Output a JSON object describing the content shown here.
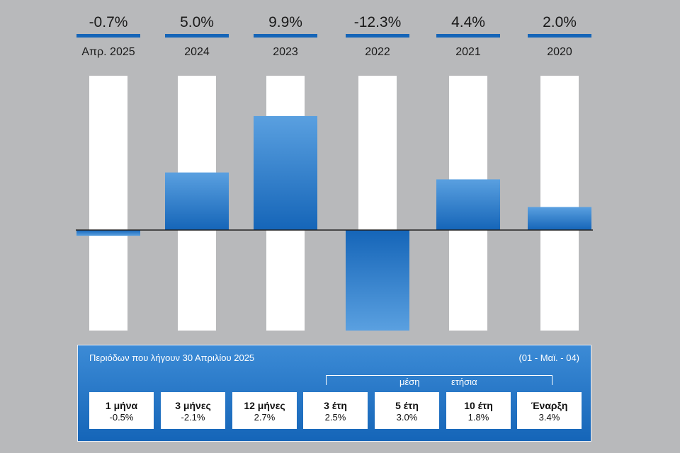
{
  "chart_data": {
    "type": "bar",
    "categories": [
      "Απρ. 2025",
      "2024",
      "2023",
      "2022",
      "2021",
      "2020"
    ],
    "values": [
      -0.7,
      5.0,
      9.9,
      -12.3,
      4.4,
      2.0
    ],
    "value_labels": [
      "-0.7%",
      "5.0%",
      "9.9%",
      "-12.3%",
      "4.4%",
      "2.0%"
    ],
    "ylim": [
      -12.3,
      13.4
    ],
    "grid": false,
    "colors": {
      "bar": "#1f6fc4",
      "bar_light": "#5aa0e0",
      "track": "#ffffff",
      "accent": "#1565b8"
    }
  },
  "periods": {
    "title": "Περιόδων που λήγουν 30 Απριλίου 2025",
    "range": "(01 - Μαϊ. - 04)",
    "bracket_label_1": "μέση",
    "bracket_label_2": "ετήσια",
    "items": [
      {
        "label": "1 μήνα",
        "value": "-0.5%"
      },
      {
        "label": "3 μήνες",
        "value": "-2.1%"
      },
      {
        "label": "12 μήνες",
        "value": "2.7%"
      },
      {
        "label": "3 έτη",
        "value": "2.5%"
      },
      {
        "label": "5 έτη",
        "value": "3.0%"
      },
      {
        "label": "10 έτη",
        "value": "1.8%"
      },
      {
        "label": "Έναρξη",
        "value": "3.4%"
      }
    ]
  }
}
